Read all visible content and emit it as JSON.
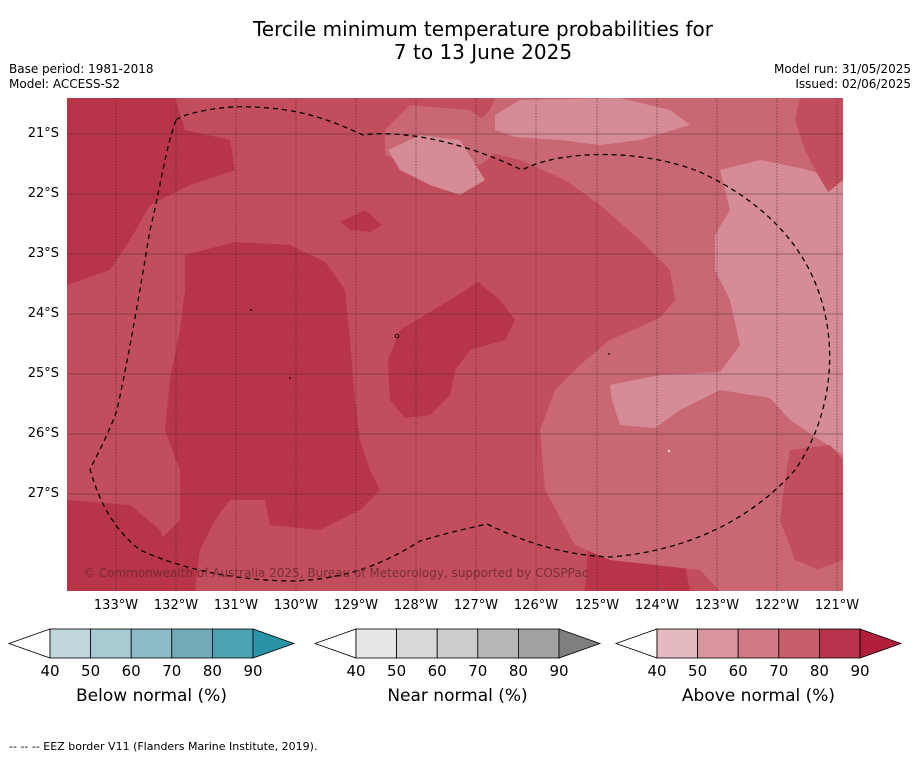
{
  "title_line1": "Tercile minimum temperature probabilities for",
  "title_line2": "7 to 13 June 2025",
  "base_period": "Base period: 1981-2018",
  "model": "Model: ACCESS-S2",
  "model_run": "Model run: 31/05/2025",
  "issued": "Issued: 02/06/2025",
  "copyright": "© Commonwealth of Australia 2025, Bureau of Meteorology, supported by COSPPac",
  "footer": "--  --  -- EEZ border V11 (Flanders Marine Institute, 2019).",
  "lat_labels": [
    "21°S",
    "22°S",
    "23°S",
    "24°S",
    "25°S",
    "26°S",
    "27°S"
  ],
  "lon_labels": [
    "133°W",
    "132°W",
    "131°W",
    "130°W",
    "129°W",
    "128°W",
    "127°W",
    "126°W",
    "125°W",
    "124°W",
    "123°W",
    "122°W",
    "121°W"
  ],
  "colors": {
    "above_50_60": "#d68c96",
    "above_60_70": "#c96873",
    "above_70_80": "#c24d5c",
    "above_80_90": "#b83449"
  },
  "colorbars": [
    {
      "title": "Below normal (%)",
      "ticks": [
        "40",
        "50",
        "60",
        "70",
        "80",
        "90"
      ],
      "colors": [
        "#ffffff",
        "#bfd6dc",
        "#a8cad2",
        "#8cbac5",
        "#72abb8",
        "#4da2b2",
        "#2a93a7"
      ]
    },
    {
      "title": "Near normal (%)",
      "ticks": [
        "40",
        "50",
        "60",
        "70",
        "80",
        "90"
      ],
      "colors": [
        "#ffffff",
        "#e6e6e6",
        "#d9d9d9",
        "#cccccc",
        "#b7b7b7",
        "#a1a1a1",
        "#7f7f7f"
      ]
    },
    {
      "title": "Above normal (%)",
      "ticks": [
        "40",
        "50",
        "60",
        "70",
        "80",
        "90"
      ],
      "colors": [
        "#ffffff",
        "#e4b9bf",
        "#d9959e",
        "#cf7a84",
        "#c65d6b",
        "#b9324b",
        "#b01e3a"
      ]
    }
  ]
}
